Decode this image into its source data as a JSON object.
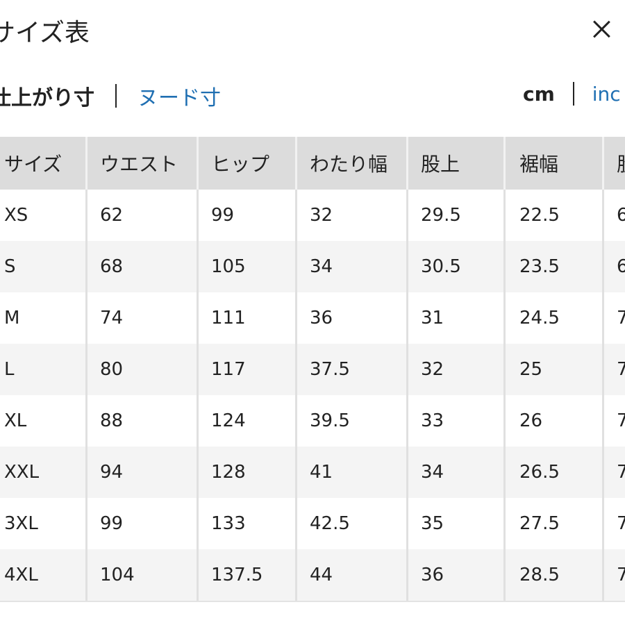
{
  "title": "サイズ表",
  "tabs": {
    "active": "仕上がり寸",
    "link": "ヌード寸"
  },
  "units": {
    "active": "cm",
    "link": "inc"
  },
  "table": {
    "headers": [
      "サイズ",
      "ウエスト",
      "ヒップ",
      "わたり幅",
      "股上",
      "裾幅",
      "股"
    ],
    "rows": [
      [
        "XS",
        "62",
        "99",
        "32",
        "29.5",
        "22.5",
        "6"
      ],
      [
        "S",
        "68",
        "105",
        "34",
        "30.5",
        "23.5",
        "6"
      ],
      [
        "M",
        "74",
        "111",
        "36",
        "31",
        "24.5",
        "7"
      ],
      [
        "L",
        "80",
        "117",
        "37.5",
        "32",
        "25",
        "7"
      ],
      [
        "XL",
        "88",
        "124",
        "39.5",
        "33",
        "26",
        "7"
      ],
      [
        "XXL",
        "94",
        "128",
        "41",
        "34",
        "26.5",
        "7"
      ],
      [
        "3XL",
        "99",
        "133",
        "42.5",
        "35",
        "27.5",
        "7"
      ],
      [
        "4XL",
        "104",
        "137.5",
        "44",
        "36",
        "28.5",
        "7"
      ]
    ]
  },
  "colors": {
    "link": "#1f6fb2",
    "header_bg": "#dcdcdc",
    "alt_row_bg": "#f4f4f4"
  }
}
